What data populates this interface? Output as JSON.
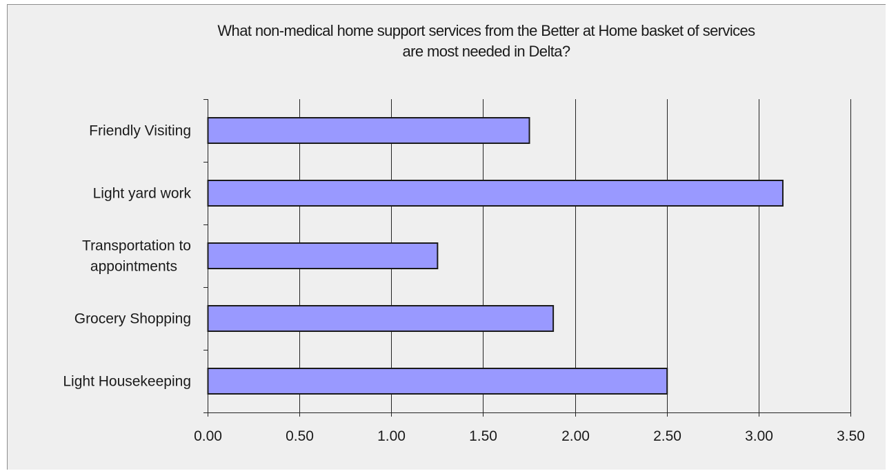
{
  "chart_data": {
    "type": "bar",
    "orientation": "horizontal",
    "title_lines": [
      "What non-medical home support services from the Better at Home basket of services",
      "are most needed in Delta?"
    ],
    "categories": [
      [
        "Friendly Visiting"
      ],
      [
        "Light yard work"
      ],
      [
        "Transportation to",
        "appointments"
      ],
      [
        "Grocery Shopping"
      ],
      [
        "Light Housekeeping"
      ]
    ],
    "values": [
      1.75,
      3.13,
      1.25,
      1.88,
      2.5
    ],
    "xlim": [
      0,
      3.5
    ],
    "xticks": [
      "0.00",
      "0.50",
      "1.00",
      "1.50",
      "2.00",
      "2.50",
      "3.00",
      "3.50"
    ],
    "grid": "vertical",
    "legend": "none",
    "colors": {
      "bar_fill": "#9999ff",
      "bar_stroke": "#1a1a1a",
      "grid": "#222222",
      "background": "#efefef"
    }
  }
}
